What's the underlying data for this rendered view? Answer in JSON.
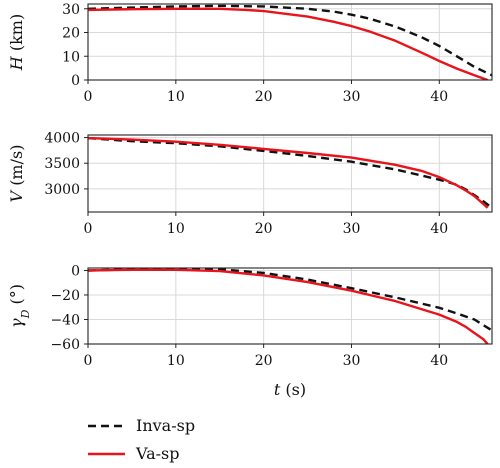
{
  "chart_data": [
    {
      "type": "line",
      "ylabel_var": "H",
      "ylabel_unit": " (km)",
      "xlim": [
        0,
        46
      ],
      "ylim": [
        0,
        32
      ],
      "xticks": [
        0,
        10,
        20,
        30,
        40
      ],
      "yticks": [
        0,
        10,
        20,
        30
      ],
      "grid": true,
      "series": [
        {
          "name": "Inva-sp",
          "color": "#111111",
          "dash": "dashed",
          "x": [
            0,
            5,
            10,
            15,
            20,
            25,
            28,
            30,
            32,
            35,
            38,
            40,
            42,
            44,
            46
          ],
          "y": [
            30,
            30.5,
            31,
            31.2,
            31,
            30,
            28.8,
            27.5,
            25.9,
            22.5,
            18,
            14.3,
            10,
            5.5,
            2
          ]
        },
        {
          "name": "Va-sp",
          "color": "#e8141b",
          "dash": "solid",
          "x": [
            0,
            5,
            10,
            15,
            18,
            20,
            25,
            28,
            30,
            32,
            35,
            38,
            40,
            42,
            44,
            45.5
          ],
          "y": [
            29.5,
            29.8,
            30,
            30,
            29.5,
            29,
            26.7,
            24.5,
            22.7,
            20.5,
            16.5,
            11.5,
            8,
            4.8,
            2,
            0
          ]
        }
      ]
    },
    {
      "type": "line",
      "ylabel_var": "V",
      "ylabel_unit": " (m/s)",
      "xlim": [
        0,
        46
      ],
      "ylim": [
        2550,
        4050
      ],
      "xticks": [
        0,
        10,
        20,
        30,
        40
      ],
      "yticks": [
        3000,
        3500,
        4000
      ],
      "grid": true,
      "series": [
        {
          "name": "Inva-sp",
          "color": "#111111",
          "dash": "dashed",
          "x": [
            0,
            5,
            10,
            15,
            20,
            25,
            30,
            35,
            40,
            42,
            43,
            44,
            45,
            46
          ],
          "y": [
            3990,
            3930,
            3890,
            3830,
            3740,
            3640,
            3530,
            3380,
            3180,
            3080,
            2990,
            2880,
            2760,
            2630
          ]
        },
        {
          "name": "Va-sp",
          "color": "#e8141b",
          "dash": "solid",
          "x": [
            0,
            5,
            10,
            15,
            20,
            25,
            30,
            35,
            38,
            40,
            42,
            43,
            44,
            45,
            45.5
          ],
          "y": [
            3990,
            3960,
            3920,
            3860,
            3780,
            3700,
            3610,
            3470,
            3350,
            3230,
            3070,
            2970,
            2860,
            2710,
            2630
          ]
        }
      ]
    },
    {
      "type": "line",
      "ylabel_var": "γ",
      "ylabel_sub": "D",
      "ylabel_unit": " (°)",
      "xlabel_var": "t",
      "xlabel_unit": " (s)",
      "xlim": [
        0,
        46
      ],
      "ylim": [
        -60,
        2
      ],
      "xticks": [
        0,
        10,
        20,
        30,
        40
      ],
      "yticks": [
        0,
        -20,
        -40,
        -60
      ],
      "grid": true,
      "series": [
        {
          "name": "Inva-sp",
          "color": "#111111",
          "dash": "dashed",
          "x": [
            0,
            5,
            10,
            15,
            20,
            25,
            30,
            35,
            40,
            42,
            44,
            46
          ],
          "y": [
            0,
            1,
            1.5,
            1,
            -2,
            -7.5,
            -14.5,
            -22,
            -30.5,
            -35,
            -40,
            -49
          ]
        },
        {
          "name": "Va-sp",
          "color": "#e8141b",
          "dash": "solid",
          "x": [
            0,
            5,
            10,
            15,
            20,
            25,
            30,
            35,
            40,
            42,
            43,
            44,
            45,
            45.5
          ],
          "y": [
            0,
            0.5,
            0.5,
            -0.5,
            -4,
            -9.5,
            -16.5,
            -25,
            -36,
            -42,
            -46,
            -51,
            -56,
            -60
          ]
        }
      ]
    }
  ],
  "legend": {
    "placement": "bottom-left",
    "items": [
      {
        "label": "Inva-sp",
        "color": "#111111",
        "dash": "dashed"
      },
      {
        "label": "Va-sp",
        "color": "#e8141b",
        "dash": "solid"
      }
    ]
  }
}
